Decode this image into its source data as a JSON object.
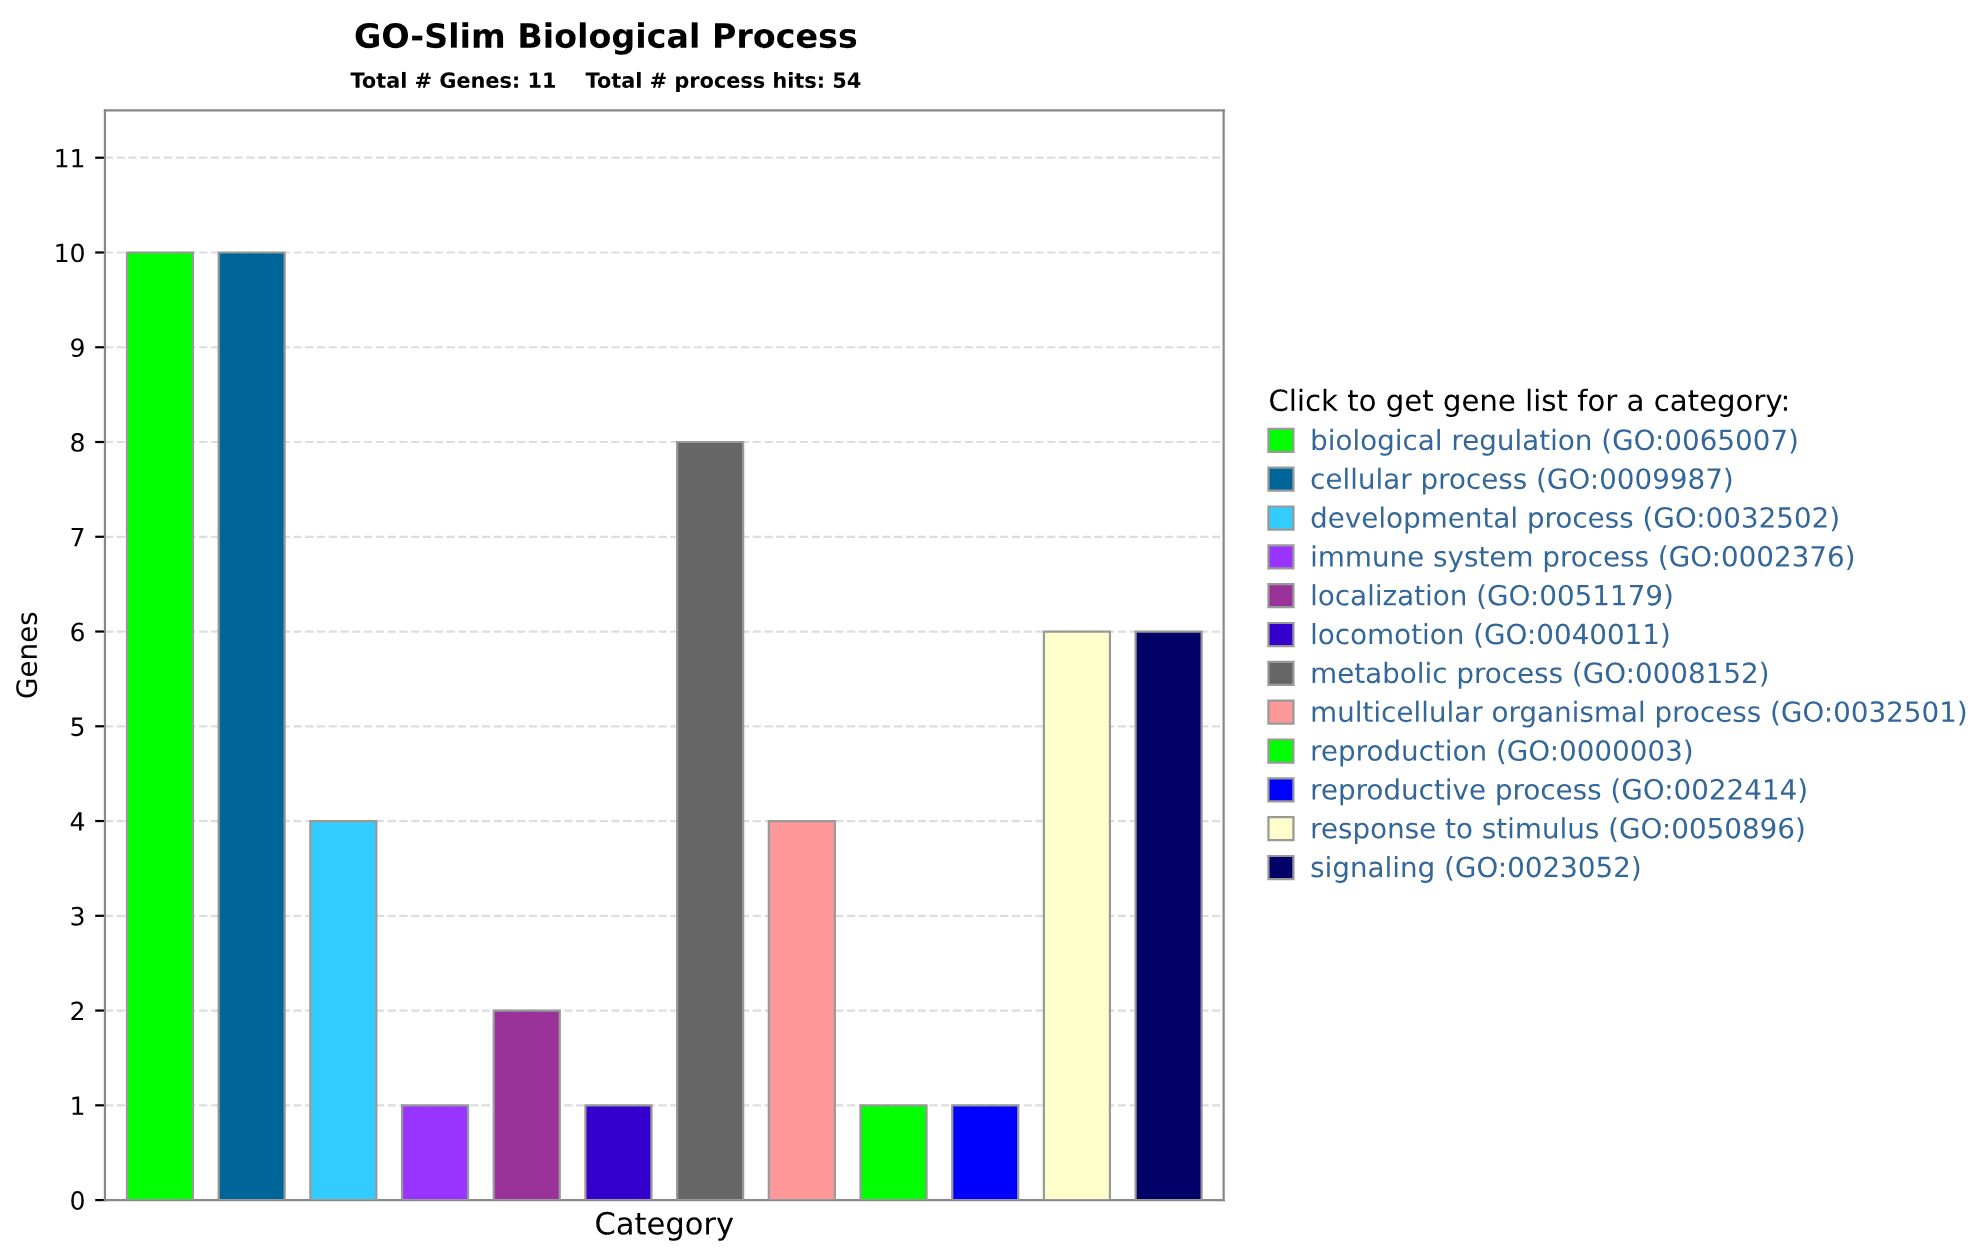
{
  "chart_data": {
    "type": "bar",
    "title": "GO-Slim Biological Process",
    "subtitle": "Total # Genes: 11    Total # process hits: 54",
    "xlabel": "Category",
    "ylabel": "Genes",
    "legend_title": "Click to get gene list for a category:",
    "categories": [
      null,
      null,
      null,
      null,
      null,
      null,
      null,
      null,
      null,
      null,
      null,
      null
    ],
    "series": [
      {
        "name": "biological regulation (GO:0065007)",
        "color": "#00ff00",
        "values": [
          10,
          null,
          null,
          null,
          null,
          null,
          null,
          null,
          null,
          null,
          null,
          null
        ]
      },
      {
        "name": "cellular process (GO:0009987)",
        "color": "#006699",
        "values": [
          null,
          10,
          null,
          null,
          null,
          null,
          null,
          null,
          null,
          null,
          null,
          null
        ]
      },
      {
        "name": "developmental process (GO:0032502)",
        "color": "#33ccff",
        "values": [
          null,
          null,
          4,
          null,
          null,
          null,
          null,
          null,
          null,
          null,
          null,
          null
        ]
      },
      {
        "name": "immune system process (GO:0002376)",
        "color": "#9933ff",
        "values": [
          null,
          null,
          null,
          1,
          null,
          null,
          null,
          null,
          null,
          null,
          null,
          null
        ]
      },
      {
        "name": "localization (GO:0051179)",
        "color": "#993399",
        "values": [
          null,
          null,
          null,
          null,
          2,
          null,
          null,
          null,
          null,
          null,
          null,
          null
        ]
      },
      {
        "name": "locomotion (GO:0040011)",
        "color": "#3300cc",
        "values": [
          null,
          null,
          null,
          null,
          null,
          1,
          null,
          null,
          null,
          null,
          null,
          null
        ]
      },
      {
        "name": "metabolic process (GO:0008152)",
        "color": "#666666",
        "values": [
          null,
          null,
          null,
          null,
          null,
          null,
          8,
          null,
          null,
          null,
          null,
          null
        ]
      },
      {
        "name": "multicellular organismal process (GO:0032501)",
        "color": "#ff9999",
        "values": [
          null,
          null,
          null,
          null,
          null,
          null,
          null,
          4,
          null,
          null,
          null,
          null
        ]
      },
      {
        "name": "reproduction (GO:0000003)",
        "color": "#00ff00",
        "values": [
          null,
          null,
          null,
          null,
          null,
          null,
          null,
          null,
          1,
          null,
          null,
          null
        ]
      },
      {
        "name": "reproductive process (GO:0022414)",
        "color": "#0000ff",
        "values": [
          null,
          null,
          null,
          null,
          null,
          null,
          null,
          null,
          null,
          1,
          null,
          null
        ]
      },
      {
        "name": "response to stimulus (GO:0050896)",
        "color": "#ffffcc",
        "values": [
          null,
          null,
          null,
          null,
          null,
          null,
          null,
          null,
          null,
          null,
          6,
          null
        ]
      },
      {
        "name": "signaling (GO:0023052)",
        "color": "#000066",
        "values": [
          null,
          null,
          null,
          null,
          null,
          null,
          null,
          null,
          null,
          null,
          null,
          6
        ]
      }
    ],
    "ylim": [
      0,
      11.5
    ],
    "yticks": [
      0,
      1,
      2,
      3,
      4,
      5,
      6,
      7,
      8,
      9,
      10,
      11
    ],
    "grid": "y",
    "legend": "right",
    "tick_labels": "y"
  }
}
